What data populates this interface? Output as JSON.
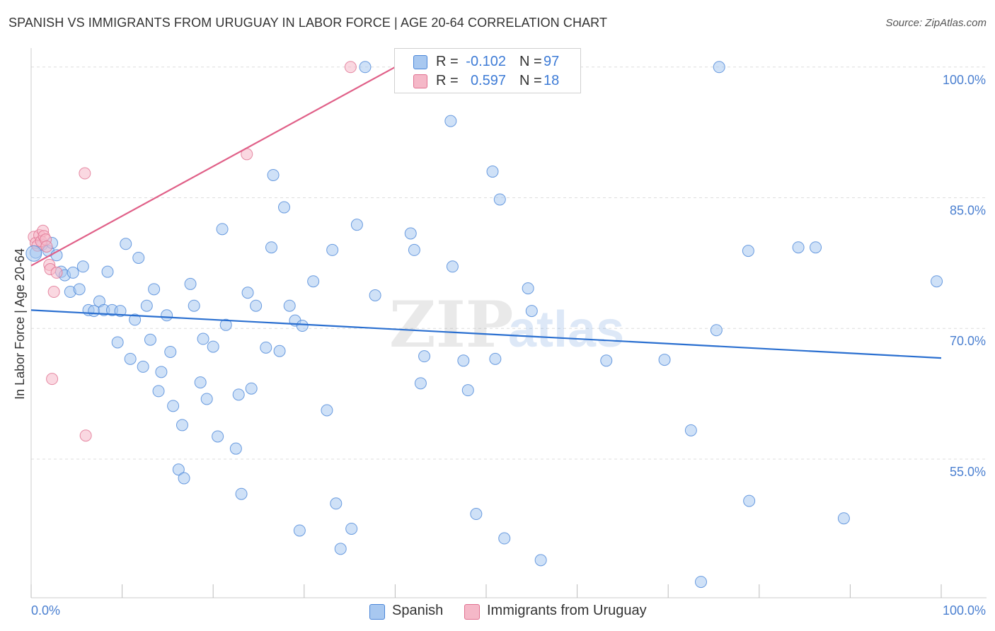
{
  "title": "SPANISH VS IMMIGRANTS FROM URUGUAY IN LABOR FORCE | AGE 20-64 CORRELATION CHART",
  "source": "Source: ZipAtlas.com",
  "watermark": {
    "zip": "ZIP",
    "atlas": "atlas"
  },
  "legend": {
    "rows": [
      {
        "r_label": "R =",
        "r_value": "-0.102",
        "n_label": "N =",
        "n_value": "97",
        "color": "#a8c8f0"
      },
      {
        "r_label": "R =",
        "r_value": "0.597",
        "n_label": "N =",
        "n_value": "18",
        "color": "#f5b8c8"
      }
    ]
  },
  "bottom_legend": [
    {
      "label": "Spanish",
      "color": "#a8c8f0"
    },
    {
      "label": "Immigrants from Uruguay",
      "color": "#f5b8c8"
    }
  ],
  "chart_data": {
    "type": "scatter",
    "title": "SPANISH VS IMMIGRANTS FROM URUGUAY IN LABOR FORCE | AGE 20-64 CORRELATION CHART",
    "xlabel": "",
    "ylabel": "In Labor Force | Age 20-64",
    "xlim": [
      0,
      100
    ],
    "ylim": [
      40.3,
      101.2
    ],
    "x_tick_labels": [
      {
        "value": 0,
        "label": "0.0%"
      },
      {
        "value": 100,
        "label": "100.0%"
      }
    ],
    "y_tick_labels": [
      {
        "value": 55,
        "label": "55.0%"
      },
      {
        "value": 70,
        "label": "70.0%"
      },
      {
        "value": 85,
        "label": "85.0%"
      },
      {
        "value": 100,
        "label": "100.0%"
      }
    ],
    "x_minor_ticks": [
      0,
      10,
      20,
      30,
      40,
      50,
      60,
      70,
      80,
      90,
      100
    ],
    "gridlines": [
      55,
      70,
      85,
      100
    ],
    "series": [
      {
        "name": "Spanish",
        "color": "#4a86d8",
        "fill": "#a8c8f0",
        "R": -0.102,
        "N": 97,
        "trend": {
          "x": [
            0,
            100
          ],
          "y": [
            72.1,
            66.6
          ]
        },
        "points": [
          [
            0.5,
            78.7
          ],
          [
            1.2,
            79.6
          ],
          [
            1.9,
            78.9
          ],
          [
            2.3,
            79.8
          ],
          [
            2.8,
            78.4
          ],
          [
            3.3,
            76.5
          ],
          [
            3.7,
            76.1
          ],
          [
            4.3,
            74.2
          ],
          [
            4.6,
            76.4
          ],
          [
            5.3,
            74.5
          ],
          [
            5.7,
            77.1
          ],
          [
            6.3,
            72.1
          ],
          [
            6.9,
            72.0
          ],
          [
            7.5,
            73.1
          ],
          [
            8.0,
            72.1
          ],
          [
            8.4,
            76.5
          ],
          [
            8.9,
            72.1
          ],
          [
            9.5,
            68.4
          ],
          [
            9.8,
            72.0
          ],
          [
            10.4,
            79.7
          ],
          [
            10.9,
            66.5
          ],
          [
            11.4,
            71.0
          ],
          [
            11.8,
            78.1
          ],
          [
            12.3,
            65.6
          ],
          [
            12.7,
            72.6
          ],
          [
            13.1,
            68.7
          ],
          [
            13.5,
            74.5
          ],
          [
            14.0,
            62.8
          ],
          [
            14.3,
            65.0
          ],
          [
            14.9,
            71.5
          ],
          [
            15.3,
            67.3
          ],
          [
            15.6,
            61.1
          ],
          [
            16.2,
            53.8
          ],
          [
            16.6,
            58.9
          ],
          [
            16.8,
            52.8
          ],
          [
            17.5,
            75.1
          ],
          [
            17.9,
            72.6
          ],
          [
            18.6,
            63.8
          ],
          [
            18.9,
            68.8
          ],
          [
            19.3,
            61.9
          ],
          [
            20.0,
            67.9
          ],
          [
            20.5,
            57.6
          ],
          [
            21.0,
            81.4
          ],
          [
            21.4,
            70.4
          ],
          [
            22.5,
            56.2
          ],
          [
            22.8,
            62.4
          ],
          [
            23.1,
            51.0
          ],
          [
            23.8,
            74.1
          ],
          [
            24.2,
            63.1
          ],
          [
            24.7,
            72.6
          ],
          [
            25.8,
            67.8
          ],
          [
            26.4,
            79.3
          ],
          [
            26.6,
            87.6
          ],
          [
            27.3,
            67.4
          ],
          [
            27.8,
            83.9
          ],
          [
            28.4,
            72.6
          ],
          [
            29.0,
            70.9
          ],
          [
            29.5,
            46.8
          ],
          [
            29.8,
            70.3
          ],
          [
            31.0,
            75.4
          ],
          [
            32.5,
            60.6
          ],
          [
            33.1,
            79.0
          ],
          [
            33.5,
            49.9
          ],
          [
            34.0,
            44.7
          ],
          [
            35.2,
            47.0
          ],
          [
            35.8,
            81.9
          ],
          [
            36.7,
            100.0
          ],
          [
            37.8,
            73.8
          ],
          [
            41.7,
            80.9
          ],
          [
            42.1,
            79.0
          ],
          [
            42.8,
            63.7
          ],
          [
            43.2,
            66.8
          ],
          [
            45.1,
            100.0
          ],
          [
            46.1,
            93.8
          ],
          [
            46.3,
            77.1
          ],
          [
            47.5,
            66.3
          ],
          [
            48.0,
            62.9
          ],
          [
            48.9,
            48.7
          ],
          [
            50.7,
            88.0
          ],
          [
            51.0,
            66.5
          ],
          [
            51.5,
            84.8
          ],
          [
            52.0,
            45.9
          ],
          [
            54.6,
            74.6
          ],
          [
            55.0,
            72.0
          ],
          [
            56.0,
            43.4
          ],
          [
            63.2,
            66.3
          ],
          [
            69.6,
            66.4
          ],
          [
            72.5,
            58.3
          ],
          [
            73.6,
            40.9
          ],
          [
            75.3,
            69.8
          ],
          [
            75.6,
            100.0
          ],
          [
            78.8,
            78.9
          ],
          [
            78.9,
            50.2
          ],
          [
            84.3,
            79.3
          ],
          [
            86.2,
            79.3
          ],
          [
            89.3,
            48.2
          ],
          [
            99.5,
            75.4
          ]
        ]
      },
      {
        "name": "Immigrants from Uruguay",
        "color": "#e07090",
        "fill": "#f5b8c8",
        "R": 0.597,
        "N": 18,
        "trend": {
          "x": [
            0,
            40.0
          ],
          "y": [
            77.2,
            100.0
          ]
        },
        "points": [
          [
            0.3,
            80.5
          ],
          [
            0.5,
            79.8
          ],
          [
            0.7,
            79.5
          ],
          [
            0.9,
            80.7
          ],
          [
            1.1,
            80.0
          ],
          [
            1.3,
            81.2
          ],
          [
            1.4,
            80.6
          ],
          [
            1.6,
            80.2
          ],
          [
            1.7,
            79.4
          ],
          [
            2.0,
            77.3
          ],
          [
            2.1,
            76.8
          ],
          [
            2.3,
            64.2
          ],
          [
            2.5,
            74.2
          ],
          [
            2.8,
            76.4
          ],
          [
            5.9,
            87.8
          ],
          [
            6.0,
            57.7
          ],
          [
            23.7,
            90.0
          ],
          [
            35.1,
            100.0
          ]
        ]
      }
    ]
  }
}
